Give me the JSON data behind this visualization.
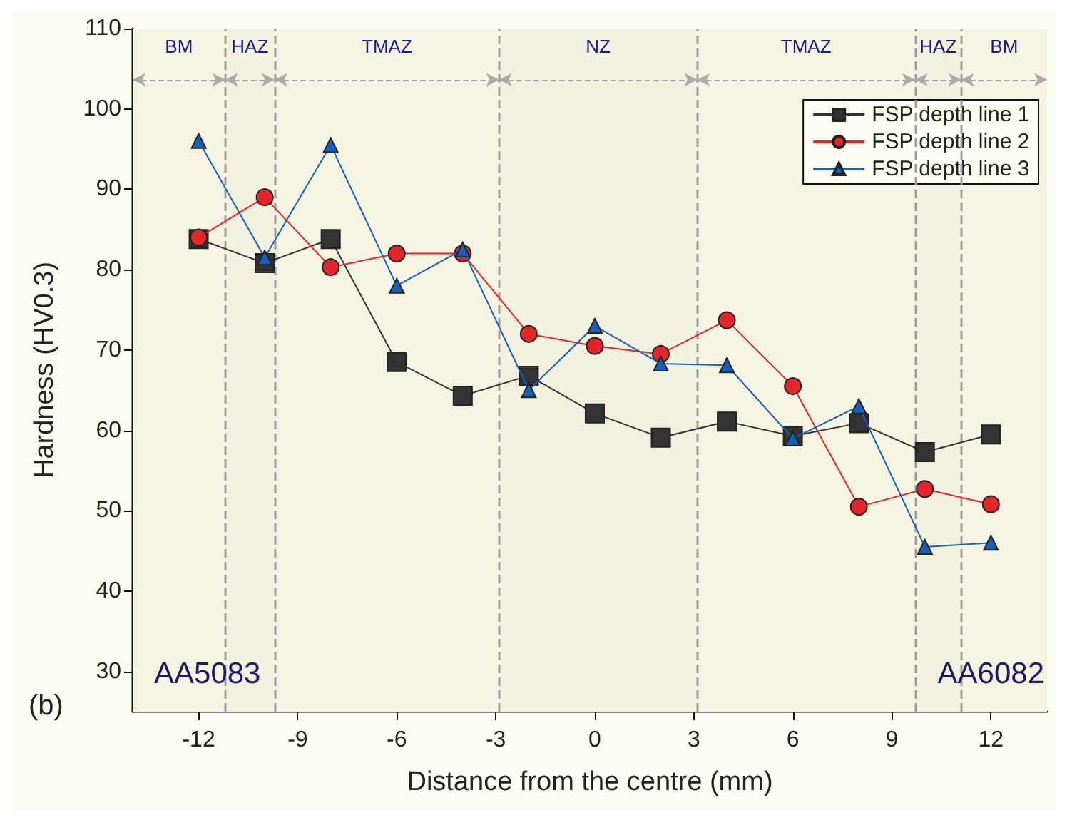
{
  "chart_data": {
    "type": "line",
    "xlabel": "Distance from the centre (mm)",
    "ylabel": "Hardness (HV0.3)",
    "x": [
      -12,
      -10,
      -8,
      -6,
      -4,
      -2,
      0,
      2,
      4,
      6,
      8,
      10,
      12
    ],
    "series": [
      {
        "name": "FSP depth line 1",
        "color": "#333333",
        "marker": "square",
        "values": [
          83.8,
          80.8,
          83.8,
          68.5,
          64.3,
          66.8,
          62.1,
          59.1,
          61.1,
          59.3,
          60.9,
          57.3,
          59.5
        ]
      },
      {
        "name": "FSP depth line 2",
        "color": "#e3262b",
        "marker": "circle",
        "values": [
          84,
          89,
          80.3,
          82,
          82,
          72,
          70.5,
          69.5,
          73.7,
          65.5,
          50.5,
          52.7,
          50.8
        ]
      },
      {
        "name": "FSP depth line 3",
        "color": "#1560bd",
        "marker": "triangle",
        "values": [
          96,
          81.5,
          95.5,
          78,
          82.5,
          65,
          73,
          68.3,
          68.1,
          59,
          63,
          45.5,
          46
        ]
      }
    ],
    "xlim": [
      -14,
      13.7
    ],
    "xticks": [
      -12,
      -9,
      -6,
      -3,
      0,
      3,
      6,
      9,
      12
    ],
    "ylim": [
      25,
      110
    ],
    "yticks": [
      30,
      40,
      50,
      60,
      70,
      80,
      90,
      100,
      110
    ],
    "ref_lines": [
      {
        "axis": "x",
        "value": -11.2,
        "label": null,
        "color": "#a09a9a",
        "line_style": "dashed"
      },
      {
        "axis": "x",
        "value": -9.7,
        "label": null,
        "color": "#a09a9a",
        "line_style": "dashed"
      },
      {
        "axis": "x",
        "value": -2.9,
        "label": null,
        "color": "#a09a9a",
        "line_style": "dashed"
      },
      {
        "axis": "x",
        "value": 3.1,
        "label": null,
        "color": "#a09a9a",
        "line_style": "dashed"
      },
      {
        "axis": "x",
        "value": 9.7,
        "label": null,
        "color": "#a09a9a",
        "line_style": "dashed"
      },
      {
        "axis": "x",
        "value": 11.1,
        "label": null,
        "color": "#a09a9a",
        "line_style": "dashed"
      }
    ],
    "bands": [
      {
        "axis": "x",
        "from": -14,
        "to": -11.2,
        "label": "BM",
        "color": "#f5f3e2"
      },
      {
        "axis": "x",
        "from": -11.2,
        "to": -9.7,
        "label": "HAZ",
        "color": "#f2f0de"
      },
      {
        "axis": "x",
        "from": -9.7,
        "to": -2.9,
        "label": "TMAZ",
        "color": "#f5f3e2"
      },
      {
        "axis": "x",
        "from": -2.9,
        "to": 3.1,
        "label": "NZ",
        "color": "#f2f0de"
      },
      {
        "axis": "x",
        "from": 3.1,
        "to": 9.7,
        "label": "TMAZ",
        "color": "#f5f3e2"
      },
      {
        "axis": "x",
        "from": 9.7,
        "to": 11.1,
        "label": "HAZ",
        "color": "#f2f0de"
      },
      {
        "axis": "x",
        "from": 11.1,
        "to": 13.7,
        "label": "BM",
        "color": "#f5f3e2"
      }
    ],
    "annotations": [
      "(b)",
      "AA5083",
      "AA6082"
    ],
    "legend": "top right",
    "grid": false,
    "line_style": "solid"
  }
}
